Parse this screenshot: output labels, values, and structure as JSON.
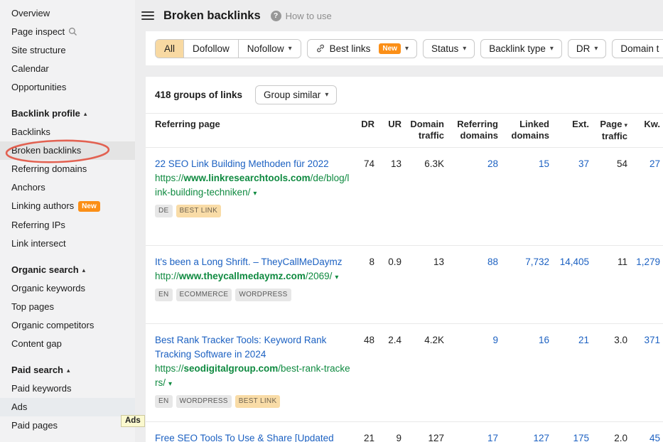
{
  "icons": {
    "caret_down": "▾",
    "caret_up": "▴",
    "help": "?"
  },
  "topbar": {
    "title": "Broken backlinks",
    "help": "How to use"
  },
  "sidebar": {
    "tooltip": "Ads",
    "sections": [
      {
        "items": [
          {
            "label": "Overview"
          },
          {
            "label": "Page inspect",
            "icon": "search"
          },
          {
            "label": "Site structure"
          },
          {
            "label": "Calendar"
          },
          {
            "label": "Opportunities"
          }
        ]
      },
      {
        "header": "Backlink profile",
        "items": [
          {
            "label": "Backlinks"
          },
          {
            "label": "Broken backlinks",
            "active": true,
            "circled": true
          },
          {
            "label": "Referring domains"
          },
          {
            "label": "Anchors"
          },
          {
            "label": "Linking authors",
            "badge": "New"
          },
          {
            "label": "Referring IPs"
          },
          {
            "label": "Link intersect"
          }
        ]
      },
      {
        "header": "Organic search",
        "items": [
          {
            "label": "Organic keywords"
          },
          {
            "label": "Top pages"
          },
          {
            "label": "Organic competitors"
          },
          {
            "label": "Content gap"
          }
        ]
      },
      {
        "header": "Paid search",
        "items": [
          {
            "label": "Paid keywords"
          },
          {
            "label": "Ads",
            "hover": true
          },
          {
            "label": "Paid pages"
          }
        ]
      }
    ]
  },
  "filters": {
    "segments": [
      {
        "label": "All",
        "selected": true
      },
      {
        "label": "Dofollow"
      },
      {
        "label": "Nofollow",
        "caret": true
      }
    ],
    "best_links": {
      "label": "Best links",
      "badge": "New"
    },
    "dropdowns": [
      {
        "label": "Status"
      },
      {
        "label": "Backlink type"
      },
      {
        "label": "DR"
      },
      {
        "label": "Domain t",
        "clipped": true
      }
    ]
  },
  "toolbar": {
    "count": "418 groups of links",
    "group_similar": "Group similar"
  },
  "table": {
    "columns": [
      {
        "key": "page",
        "lines": [
          "Referring page"
        ],
        "align": "left"
      },
      {
        "key": "dr",
        "lines": [
          "DR"
        ]
      },
      {
        "key": "ur",
        "lines": [
          "UR"
        ]
      },
      {
        "key": "domain_traffic",
        "lines": [
          "Domain",
          "traffic"
        ]
      },
      {
        "key": "referring_domains",
        "lines": [
          "Referring",
          "domains"
        ],
        "link": true
      },
      {
        "key": "linked_domains",
        "lines": [
          "Linked",
          "domains"
        ],
        "link": true
      },
      {
        "key": "ext",
        "lines": [
          "Ext."
        ],
        "link": true
      },
      {
        "key": "page_traffic",
        "lines": [
          "Page",
          "traffic"
        ],
        "sorted": true
      },
      {
        "key": "kw",
        "lines": [
          "Kw."
        ],
        "link": true
      }
    ],
    "rows": [
      {
        "title": "22 SEO Link Building Methoden für 2022",
        "url": {
          "prefix": "https://",
          "domain": "www.linkresearchtools.com",
          "path": "/de/blog/link-building-techniken/"
        },
        "badges": [
          {
            "label": "DE",
            "style": "gray"
          },
          {
            "label": "BEST LINK",
            "style": "tan"
          }
        ],
        "dr": "74",
        "ur": "13",
        "domain_traffic": "6.3K",
        "referring_domains": "28",
        "linked_domains": "15",
        "ext": "37",
        "page_traffic": "54",
        "kw": "27"
      },
      {
        "title": "It's been a Long Shrift. – TheyCallMeDaymz",
        "url": {
          "prefix": "http://",
          "domain": "www.theycallmedaymz.com",
          "path": "/2069/"
        },
        "badges": [
          {
            "label": "EN",
            "style": "gray"
          },
          {
            "label": "ECOMMERCE",
            "style": "gray"
          },
          {
            "label": "WORDPRESS",
            "style": "gray"
          }
        ],
        "dr": "8",
        "ur": "0.9",
        "domain_traffic": "13",
        "referring_domains": "88",
        "linked_domains": "7,732",
        "ext": "14,405",
        "page_traffic": "11",
        "kw": "1,279"
      },
      {
        "title": "Best Rank Tracker Tools: Keyword Rank Tracking Software in 2024",
        "url": {
          "prefix": "https://",
          "domain": "seodigitalgroup.com",
          "path": "/best-rank-trackers/"
        },
        "badges": [
          {
            "label": "EN",
            "style": "gray"
          },
          {
            "label": "WORDPRESS",
            "style": "gray"
          },
          {
            "label": "BEST LINK",
            "style": "tan"
          }
        ],
        "dr": "48",
        "ur": "2.4",
        "domain_traffic": "4.2K",
        "referring_domains": "9",
        "linked_domains": "16",
        "ext": "21",
        "page_traffic": "3.0",
        "kw": "371"
      },
      {
        "title": "Free SEO Tools To Use & Share [Updated",
        "url": null,
        "badges": [],
        "dr": "21",
        "ur": "9",
        "domain_traffic": "127",
        "referring_domains": "17",
        "linked_domains": "127",
        "ext": "175",
        "page_traffic": "2.0",
        "kw": "45"
      }
    ]
  }
}
